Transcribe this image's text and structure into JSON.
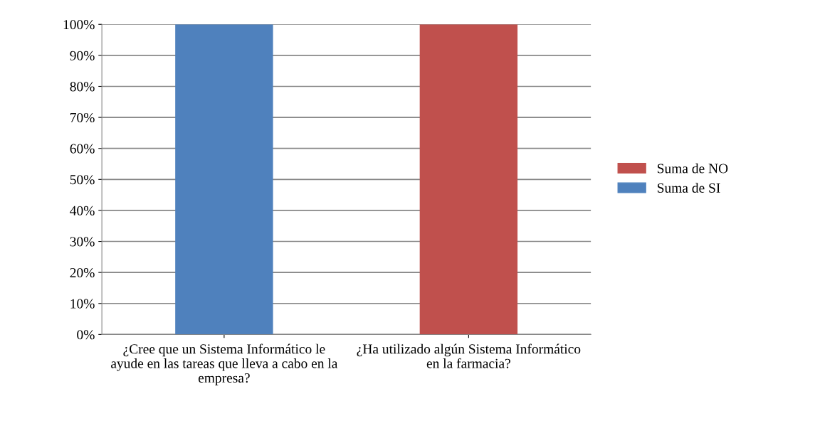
{
  "chart_data": {
    "type": "bar",
    "stacked": true,
    "categories": [
      "¿Cree que un Sistema Informático le ayude en las tareas que lleva a cabo en la empresa?",
      "¿Ha utilizado algún Sistema Informático en la farmacia?"
    ],
    "series": [
      {
        "name": "Suma de SI",
        "color": "#4f81bd",
        "values": [
          100,
          0
        ]
      },
      {
        "name": "Suma de NO",
        "color": "#c0504d",
        "values": [
          0,
          100
        ]
      }
    ],
    "ylim": [
      0,
      100
    ],
    "yticks": [
      {
        "value": 0,
        "label": "0%"
      },
      {
        "value": 10,
        "label": "10%"
      },
      {
        "value": 20,
        "label": "20%"
      },
      {
        "value": 30,
        "label": "30%"
      },
      {
        "value": 40,
        "label": "40%"
      },
      {
        "value": 50,
        "label": "50%"
      },
      {
        "value": 60,
        "label": "60%"
      },
      {
        "value": 70,
        "label": "70%"
      },
      {
        "value": 80,
        "label": "80%"
      },
      {
        "value": 90,
        "label": "90%"
      },
      {
        "value": 100,
        "label": "100%"
      }
    ],
    "grid": "y",
    "legend": "right"
  }
}
